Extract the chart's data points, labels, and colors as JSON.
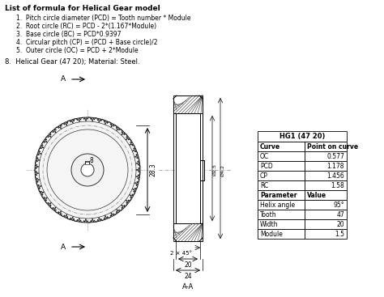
{
  "title_text": "List of formula for Helical Gear model",
  "formulas": [
    "Pitch circle diameter (PCD) = Tooth number * Module",
    "Root circle (RC) = PCD - 2*(1.167*Module)",
    "Base circle (BC) = PCD*0.9397",
    "Circular pitch (CP) = (PCD + Base circle)/2",
    "Outer circle (OC) = PCD + 2*Module"
  ],
  "subtitle": "8.  Helical Gear (47 20); Material: Steel.",
  "table_title": "HG1 (47 20)",
  "table_col1_header": "Curve",
  "table_col2_header": "Point on curve",
  "table_rows": [
    [
      "OC",
      "0.577"
    ],
    [
      "PCD",
      "1.178"
    ],
    [
      "CP",
      "1.456"
    ],
    [
      "RC",
      "1.58"
    ]
  ],
  "table2_col1_header": "Parameter",
  "table2_col2_header": "Value",
  "table2_rows": [
    [
      "Helix angle",
      "95°"
    ],
    [
      "Tooth",
      "47"
    ],
    [
      "Width",
      "20"
    ],
    [
      "Module",
      "1.5"
    ]
  ],
  "bg_color": "#ffffff",
  "text_color": "#000000",
  "label_A": "A",
  "dim_283": "28.3",
  "dim_20": "20",
  "dim_24": "24",
  "dim_225": "Ø2.5",
  "dim_42": "Ø4.2",
  "dim_chamfer": "2 × 45°",
  "label_AA": "A-A",
  "label_8": "8"
}
